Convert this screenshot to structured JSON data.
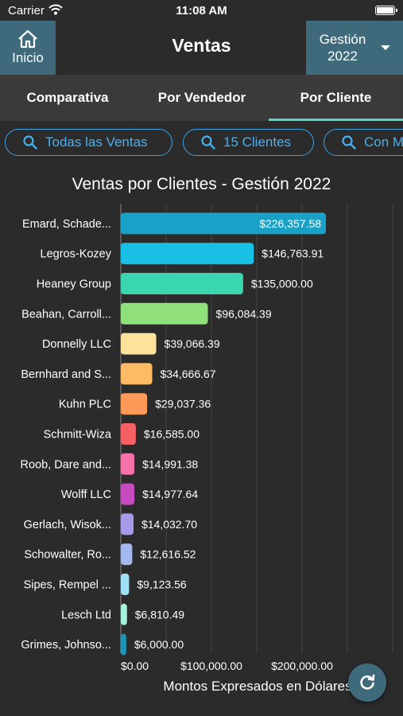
{
  "status": {
    "carrier": "Carrier",
    "time": "11:08 AM"
  },
  "header": {
    "home_label": "Inicio",
    "title": "Ventas",
    "year_label": "Gestión 2022"
  },
  "tabs": [
    {
      "label": "Comparativa",
      "active": false
    },
    {
      "label": "Por Vendedor",
      "active": false
    },
    {
      "label": "Por Cliente",
      "active": true
    }
  ],
  "filters": [
    {
      "label": "Todas las Ventas"
    },
    {
      "label": "15 Clientes"
    },
    {
      "label": "Con M"
    }
  ],
  "chart_data": {
    "type": "bar",
    "orientation": "horizontal",
    "title": "Ventas por Clientes - Gestión 2022",
    "xlabel": "Montos Expresados en Dólares",
    "xlim": [
      0,
      300000
    ],
    "xticks": [
      "$0.00",
      "$100,000.00",
      "$200,000.00"
    ],
    "xtick_values": [
      0,
      100000,
      200000
    ],
    "grid": true,
    "categories": [
      "Emard, Schade...",
      "Legros-Kozey",
      "Heaney Group",
      "Beahan, Carroll...",
      "Donnelly LLC",
      "Bernhard and S...",
      "Kuhn PLC",
      "Schmitt-Wiza",
      "Roob, Dare and...",
      "Wolff LLC",
      "Gerlach, Wisok...",
      "Schowalter, Ro...",
      "Sipes, Rempel ...",
      "Lesch Ltd",
      "Grimes, Johnso..."
    ],
    "values": [
      226357.58,
      146763.91,
      135000.0,
      96084.39,
      39066.39,
      34666.67,
      29037.36,
      16585.0,
      14991.38,
      14977.64,
      14032.7,
      12616.52,
      9123.56,
      6810.49,
      6000.0
    ],
    "value_labels": [
      "$226,357.58",
      "$146,763.91",
      "$135,000.00",
      "$96,084.39",
      "$39,066.39",
      "$34,666.67",
      "$29,037.36",
      "$16,585.00",
      "$14,991.38",
      "$14,977.64",
      "$14,032.70",
      "$12,616.52",
      "$9,123.56",
      "$6,810.49",
      "$6,000.00"
    ],
    "colors": [
      "#1aa1c8",
      "#18c0e6",
      "#3ad6b0",
      "#8fe07a",
      "#fbe39c",
      "#fdbb66",
      "#fd9a5a",
      "#f56065",
      "#f472a8",
      "#c64bbf",
      "#a79ae8",
      "#a3b8ee",
      "#9fe0f6",
      "#a6f2dc",
      "#1f94b6"
    ]
  }
}
